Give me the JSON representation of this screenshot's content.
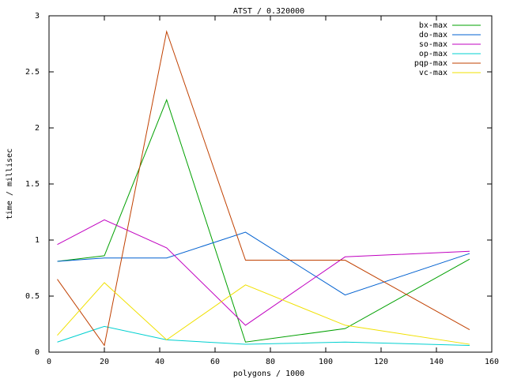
{
  "chart_data": {
    "type": "line",
    "title": "ATST / 0.320000",
    "x_label": "polygons / 1000",
    "y_label": "time / millisec",
    "x": [
      3,
      20,
      42.5,
      71,
      107,
      152
    ],
    "series": [
      {
        "name": "bx-max",
        "color": "#00a000",
        "values": [
          0.81,
          0.86,
          2.25,
          0.09,
          0.21,
          0.83
        ]
      },
      {
        "name": "do-max",
        "color": "#0060d0",
        "values": [
          0.81,
          0.84,
          0.84,
          1.07,
          0.51,
          0.88
        ]
      },
      {
        "name": "so-max",
        "color": "#c000c0",
        "values": [
          0.96,
          1.18,
          0.93,
          0.24,
          0.85,
          0.9
        ]
      },
      {
        "name": "op-max",
        "color": "#00d0d0",
        "values": [
          0.09,
          0.23,
          0.11,
          0.07,
          0.09,
          0.06
        ]
      },
      {
        "name": "pqp-max",
        "color": "#c04000",
        "values": [
          0.65,
          0.06,
          2.86,
          0.82,
          0.82,
          0.2
        ]
      },
      {
        "name": "vc-max",
        "color": "#f0e000",
        "values": [
          0.15,
          0.62,
          0.11,
          0.6,
          0.24,
          0.07
        ]
      }
    ],
    "xlim": [
      0,
      160
    ],
    "xticks": [
      0,
      20,
      40,
      60,
      80,
      100,
      120,
      140,
      160
    ],
    "ylim": [
      0,
      3
    ],
    "yticks": [
      0,
      0.5,
      1,
      1.5,
      2,
      2.5,
      3
    ],
    "grid": false,
    "legend": "top-right"
  }
}
